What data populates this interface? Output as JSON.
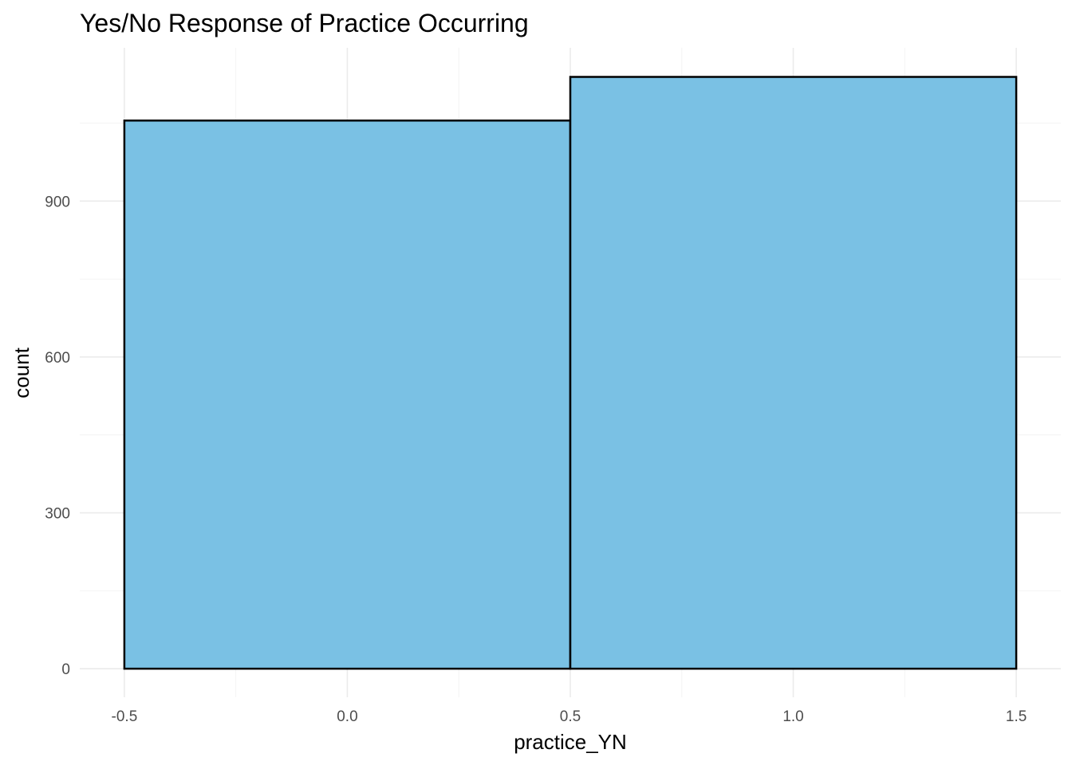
{
  "chart_data": {
    "type": "bar",
    "title": "Yes/No Response of Practice Occurring",
    "xlabel": "practice_YN",
    "ylabel": "count",
    "bins": [
      {
        "x_start": -0.5,
        "x_end": 0.5,
        "value": 1055
      },
      {
        "x_start": 0.5,
        "x_end": 1.5,
        "value": 1139
      }
    ],
    "xlim": [
      -0.6,
      1.6
    ],
    "ylim": [
      -55,
      1195
    ],
    "x_ticks": [
      -0.5,
      0.0,
      0.5,
      1.0,
      1.5
    ],
    "x_tick_labels": [
      "-0.5",
      "0.0",
      "0.5",
      "1.0",
      "1.5"
    ],
    "x_minor_ticks": [
      -0.25,
      0.25,
      0.75,
      1.25
    ],
    "y_ticks": [
      0,
      300,
      600,
      900
    ],
    "y_tick_labels": [
      "0",
      "300",
      "600",
      "900"
    ],
    "y_minor_ticks": [
      150,
      450,
      750,
      1050
    ],
    "grid": true,
    "legend": "none",
    "colors": {
      "bar_fill": "#7AC1E4",
      "bar_outline": "#000000",
      "grid": "#EBEBEB",
      "background": "#FFFFFF"
    }
  }
}
